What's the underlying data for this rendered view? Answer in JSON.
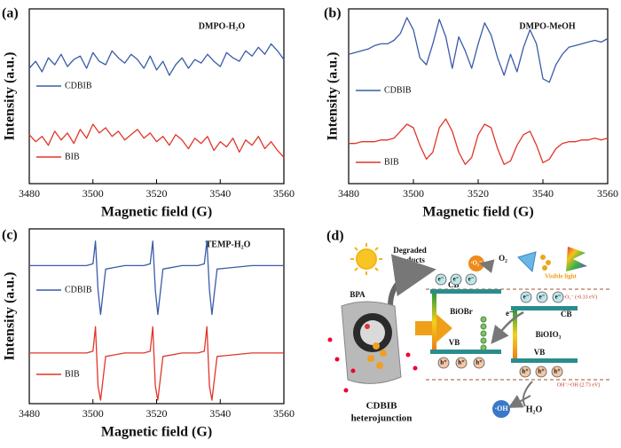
{
  "chart_data": [
    {
      "type": "line",
      "panel_label": "(a)",
      "annotation": "DMPO-H₂O",
      "xlabel": "Magnetic field (G)",
      "ylabel": "Intensity (a.u.)",
      "x": [
        3480,
        3482,
        3484,
        3486,
        3488,
        3490,
        3492,
        3494,
        3496,
        3498,
        3500,
        3502,
        3504,
        3506,
        3508,
        3510,
        3512,
        3514,
        3516,
        3518,
        3520,
        3522,
        3524,
        3526,
        3528,
        3530,
        3532,
        3534,
        3536,
        3538,
        3540,
        3542,
        3544,
        3546,
        3548,
        3550,
        3552,
        3554,
        3556,
        3558,
        3560
      ],
      "series": [
        {
          "name": "CDBIB",
          "color": "#3a5ba8",
          "values": [
            66,
            70,
            64,
            72,
            68,
            74,
            67,
            71,
            73,
            66,
            75,
            70,
            68,
            76,
            72,
            69,
            74,
            71,
            66,
            73,
            65,
            70,
            62,
            68,
            72,
            66,
            71,
            69,
            74,
            70,
            67,
            75,
            72,
            70,
            76,
            73,
            78,
            74,
            80,
            76,
            71
          ]
        },
        {
          "name": "BIB",
          "color": "#e0362a",
          "values": [
            28,
            24,
            27,
            22,
            30,
            25,
            29,
            23,
            31,
            26,
            34,
            29,
            32,
            27,
            30,
            25,
            28,
            31,
            26,
            29,
            24,
            27,
            22,
            28,
            25,
            20,
            26,
            23,
            27,
            19,
            24,
            21,
            26,
            18,
            25,
            22,
            27,
            20,
            24,
            19,
            15
          ]
        }
      ],
      "xlim": [
        3480,
        3560
      ],
      "xticks": [
        3480,
        3500,
        3520,
        3540,
        3560
      ],
      "ylim": [
        0,
        100
      ]
    },
    {
      "type": "line",
      "panel_label": "(b)",
      "annotation": "DMPO-MeOH",
      "xlabel": "Magnetic field (G)",
      "ylabel": "Intensity (a.u.)",
      "x": [
        3480,
        3482,
        3484,
        3486,
        3488,
        3490,
        3492,
        3494,
        3496,
        3498,
        3500,
        3502,
        3504,
        3506,
        3508,
        3510,
        3512,
        3514,
        3516,
        3518,
        3520,
        3522,
        3524,
        3526,
        3528,
        3530,
        3532,
        3534,
        3536,
        3538,
        3540,
        3542,
        3544,
        3546,
        3548,
        3550,
        3552,
        3554,
        3556,
        3558,
        3560
      ],
      "series": [
        {
          "name": "CDBIB",
          "color": "#3a5ba8",
          "values": [
            74,
            75,
            76,
            77,
            79,
            80,
            80,
            82,
            86,
            95,
            88,
            72,
            68,
            80,
            94,
            84,
            66,
            84,
            76,
            66,
            80,
            92,
            85,
            72,
            62,
            74,
            64,
            78,
            88,
            80,
            60,
            58,
            68,
            74,
            78,
            79,
            80,
            81,
            82,
            81,
            83
          ]
        },
        {
          "name": "BIB",
          "color": "#e0362a",
          "values": [
            23,
            23,
            24,
            24,
            24,
            25,
            25,
            26,
            30,
            34,
            32,
            22,
            14,
            18,
            32,
            37,
            30,
            18,
            11,
            15,
            28,
            34,
            32,
            20,
            11,
            13,
            22,
            28,
            30,
            22,
            12,
            14,
            20,
            23,
            24,
            24,
            25,
            25,
            26,
            25,
            26
          ]
        }
      ],
      "xlim": [
        3480,
        3560
      ],
      "xticks": [
        3480,
        3500,
        3520,
        3540,
        3560
      ],
      "ylim": [
        0,
        100
      ]
    },
    {
      "type": "line",
      "panel_label": "(c)",
      "annotation": "TEMP-H₂O",
      "xlabel": "Magnetic field (G)",
      "ylabel": "Intensity (a.u.)",
      "x": [
        3480,
        3490,
        3498,
        3500,
        3500.8,
        3501.6,
        3502.4,
        3504,
        3510,
        3516,
        3518,
        3518.8,
        3519.6,
        3520.4,
        3522,
        3528,
        3533,
        3535,
        3535.8,
        3536.6,
        3537.4,
        3539,
        3550,
        3560
      ],
      "series": [
        {
          "name": "CDBIB",
          "color": "#3a5ba8",
          "values": [
            79,
            79,
            79,
            80,
            93,
            65,
            51,
            77,
            79,
            79,
            80,
            93,
            65,
            51,
            77,
            79,
            79,
            80,
            93,
            65,
            51,
            77,
            79,
            79
          ]
        },
        {
          "name": "BIB",
          "color": "#e0362a",
          "values": [
            29,
            29,
            29,
            30,
            44,
            10,
            2,
            27,
            29,
            29,
            30,
            44,
            10,
            2,
            27,
            29,
            29,
            30,
            44,
            10,
            2,
            27,
            29,
            29
          ]
        }
      ],
      "xlim": [
        3480,
        3560
      ],
      "xticks": [
        3480,
        3500,
        3520,
        3540,
        3560
      ],
      "ylim": [
        0,
        100
      ]
    }
  ],
  "diagram": {
    "panel_label": "(d)",
    "degraded": [
      "Degraded",
      "products"
    ],
    "pollutant": "BPA",
    "material": [
      "CDBIB",
      "heterojunction"
    ],
    "superoxide": "·O₂⁻",
    "oxygen": "O₂",
    "light": "Visible light",
    "cb": "CB",
    "vb": "VB",
    "semiconductor_1": "BiOBr",
    "semiconductor_2": "BiOIO₃",
    "electron": "e⁻",
    "hole": "h⁺",
    "potential_1": "O₂/·O₂⁻ (-0.33 eV)",
    "potential_2": "OH⁻/·OH (2.73 eV)",
    "hydroxyl": "·OH",
    "water": "H₂O"
  }
}
